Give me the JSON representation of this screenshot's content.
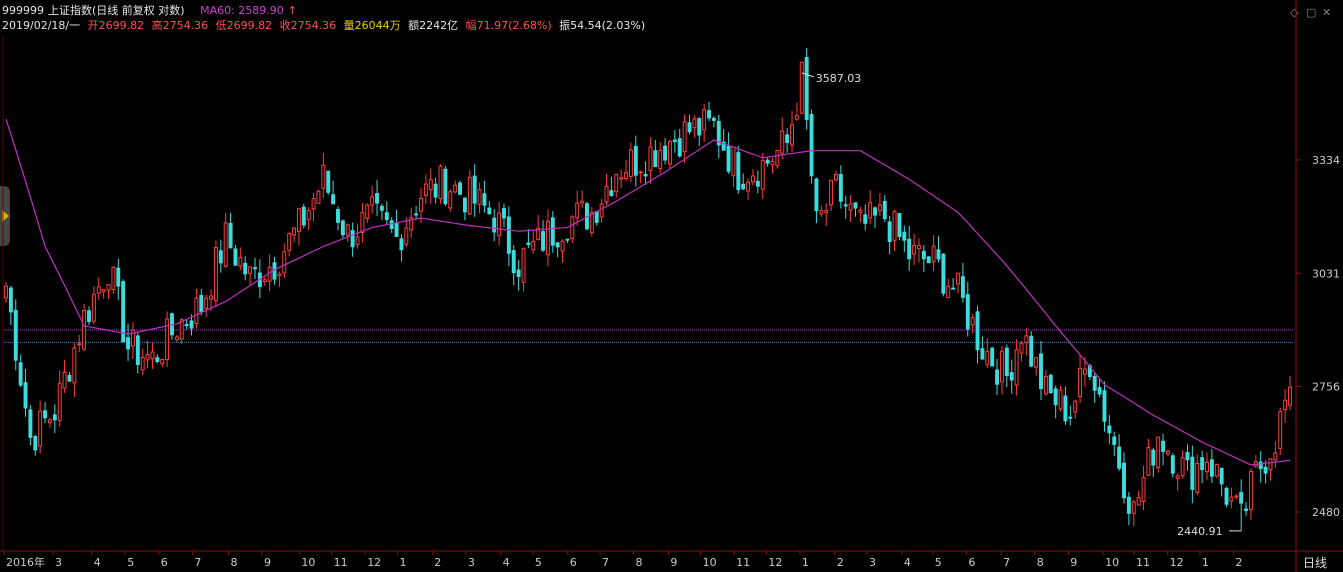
{
  "header": {
    "code": "999999",
    "name": "上证指数(日线 前复权 对数)",
    "ma_label": "MA60: 2589.90",
    "ma_arrow": "↑",
    "date": "2019/02/18/一",
    "open": "开2699.82",
    "high": "高2754.36",
    "low": "低2699.82",
    "close": "收2754.36",
    "volume": "量26044万",
    "amount": "额2242亿",
    "change": "幅71.97(2.68%)",
    "amplitude": "振54.54(2.03%)"
  },
  "window_controls": {
    "diamond": "◇",
    "restore": "▢",
    "close": "✕"
  },
  "period_label": "日线",
  "colors": {
    "up": "#ff3c3c",
    "down": "#3cdcdc",
    "ma": "#c030c0",
    "bg": "#000000",
    "hline1": "#a040c0",
    "hline2": "#4080c0"
  },
  "chart_data": {
    "type": "candlestick",
    "title": "999999 上证指数(日线 前复权 对数)",
    "y_scale": "log",
    "ylim": [
      2400,
      3700
    ],
    "y_ticks": [
      2480,
      2756,
      3031,
      3334
    ],
    "x_tick_labels": [
      "2016年",
      "3",
      "4",
      "5",
      "6",
      "7",
      "8",
      "9",
      "10",
      "11",
      "12",
      "1",
      "2",
      "3",
      "4",
      "5",
      "6",
      "7",
      "8",
      "9",
      "10",
      "11",
      "12",
      "1",
      "2",
      "3",
      "4",
      "5",
      "6",
      "7",
      "8",
      "9",
      "10",
      "11",
      "12",
      "1",
      "2"
    ],
    "x_tick_fraction": [
      0.0,
      0.038,
      0.068,
      0.094,
      0.12,
      0.146,
      0.174,
      0.2,
      0.229,
      0.254,
      0.28,
      0.305,
      0.332,
      0.358,
      0.385,
      0.41,
      0.437,
      0.462,
      0.488,
      0.515,
      0.54,
      0.566,
      0.591,
      0.617,
      0.644,
      0.669,
      0.696,
      0.72,
      0.746,
      0.773,
      0.799,
      0.825,
      0.852,
      0.876,
      0.902,
      0.927,
      0.953
    ],
    "annotations": [
      {
        "text": "3587.03",
        "value": 3587.03,
        "position": "max"
      },
      {
        "text": "2440.91",
        "value": 2440.91,
        "position": "min"
      }
    ],
    "horizontal_lines": [
      2890,
      2860
    ],
    "close_anchors": [
      [
        0,
        3000
      ],
      [
        5,
        2640
      ],
      [
        10,
        2700
      ],
      [
        16,
        2920
      ],
      [
        21,
        3050
      ],
      [
        25,
        2850
      ],
      [
        30,
        2820
      ],
      [
        35,
        2900
      ],
      [
        40,
        2950
      ],
      [
        45,
        3120
      ],
      [
        50,
        3020
      ],
      [
        55,
        3060
      ],
      [
        60,
        3150
      ],
      [
        65,
        3280
      ],
      [
        70,
        3130
      ],
      [
        75,
        3180
      ],
      [
        80,
        3120
      ],
      [
        85,
        3240
      ],
      [
        90,
        3270
      ],
      [
        95,
        3230
      ],
      [
        100,
        3180
      ],
      [
        105,
        3060
      ],
      [
        110,
        3120
      ],
      [
        115,
        3170
      ],
      [
        120,
        3190
      ],
      [
        125,
        3310
      ],
      [
        130,
        3340
      ],
      [
        135,
        3380
      ],
      [
        140,
        3420
      ],
      [
        145,
        3430
      ],
      [
        150,
        3300
      ],
      [
        155,
        3320
      ],
      [
        160,
        3380
      ],
      [
        163,
        3570
      ],
      [
        166,
        3150
      ],
      [
        170,
        3250
      ],
      [
        175,
        3150
      ],
      [
        180,
        3180
      ],
      [
        185,
        3080
      ],
      [
        190,
        3060
      ],
      [
        195,
        2980
      ],
      [
        200,
        2850
      ],
      [
        205,
        2780
      ],
      [
        208,
        2890
      ],
      [
        213,
        2740
      ],
      [
        218,
        2700
      ],
      [
        222,
        2820
      ],
      [
        226,
        2660
      ],
      [
        231,
        2480
      ],
      [
        236,
        2650
      ],
      [
        242,
        2560
      ],
      [
        246,
        2600
      ],
      [
        250,
        2520
      ],
      [
        253,
        2460
      ],
      [
        256,
        2560
      ],
      [
        260,
        2640
      ],
      [
        263,
        2754
      ]
    ],
    "ma60_anchors": [
      [
        0,
        3450
      ],
      [
        8,
        3100
      ],
      [
        16,
        2900
      ],
      [
        25,
        2880
      ],
      [
        35,
        2905
      ],
      [
        45,
        2960
      ],
      [
        55,
        3040
      ],
      [
        65,
        3100
      ],
      [
        75,
        3150
      ],
      [
        85,
        3175
      ],
      [
        95,
        3155
      ],
      [
        105,
        3140
      ],
      [
        115,
        3150
      ],
      [
        125,
        3220
      ],
      [
        135,
        3300
      ],
      [
        145,
        3390
      ],
      [
        155,
        3340
      ],
      [
        165,
        3360
      ],
      [
        175,
        3360
      ],
      [
        185,
        3280
      ],
      [
        195,
        3190
      ],
      [
        205,
        3050
      ],
      [
        215,
        2900
      ],
      [
        225,
        2760
      ],
      [
        235,
        2690
      ],
      [
        245,
        2630
      ],
      [
        255,
        2580
      ],
      [
        263,
        2590
      ]
    ],
    "num_candles": 264
  }
}
